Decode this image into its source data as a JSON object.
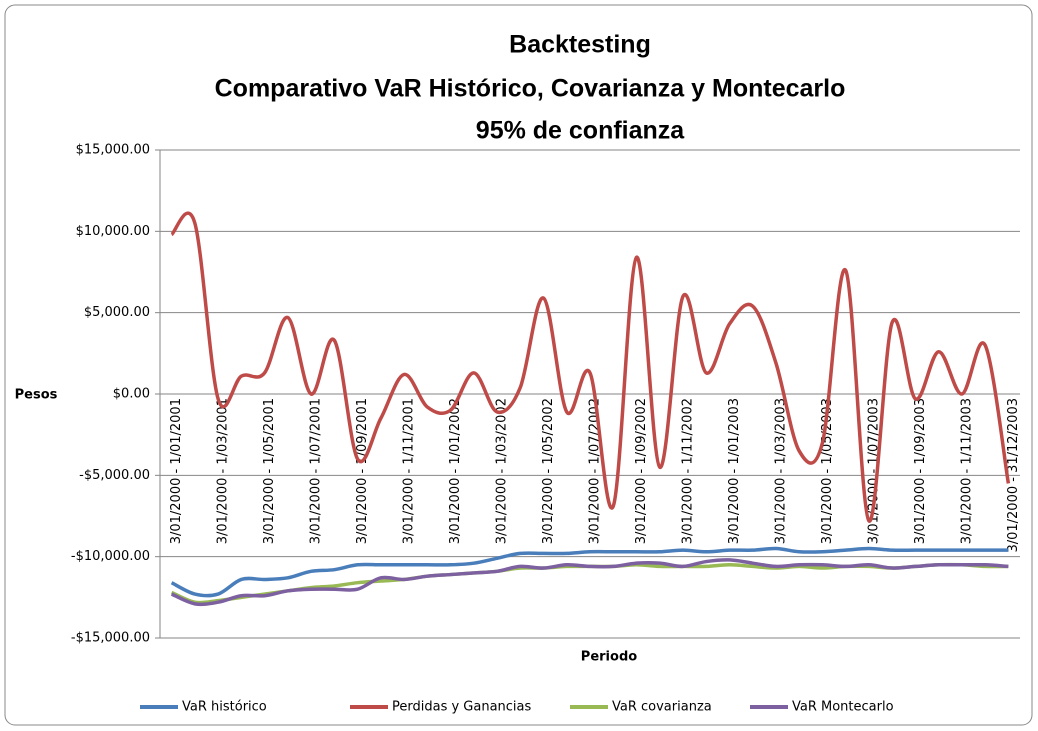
{
  "chart_data": {
    "type": "line",
    "title": [
      "Backtesting",
      "Comparativo VaR Histórico, Covarianza y Montecarlo",
      "95% de confianza"
    ],
    "y_label": "Pesos",
    "x_label": "Periodo",
    "categories": [
      "3/01/2000 - 1/01/2001",
      null,
      "3/01/2000 - 1/03/2001",
      null,
      "3/01/2000 - 1/05/2001",
      null,
      "3/01/2000 - 1/07/2001",
      null,
      "3/01/2000 - 1/09/2001",
      null,
      "3/01/2000 - 1/11/2001",
      null,
      "3/01/2000 - 1/01/2002",
      null,
      "3/01/2000 - 1/03/2002",
      null,
      "3/01/2000 - 1/05/2002",
      null,
      "3/01/2000 - 1/07/2002",
      null,
      "3/01/2000 - 1/09/2002",
      null,
      "3/01/2000 - 1/11/2002",
      null,
      "3/01/2000 - 1/01/2003",
      null,
      "3/01/2000 - 1/03/2003",
      null,
      "3/01/2000 - 1/05/2003",
      null,
      "3/01/2000 - 1/07/2003",
      null,
      "3/01/2000 - 1/09/2003",
      null,
      "3/01/2000 - 1/11/2003",
      null,
      "3/01/2000 - 31/12/2003"
    ],
    "series": [
      {
        "name": "VaR histórico",
        "color": "#4a7ebb",
        "values": [
          -11600,
          -12300,
          -12300,
          -11400,
          -11400,
          -11300,
          -10900,
          -10800,
          -10500,
          -10500,
          -10500,
          -10500,
          -10500,
          -10400,
          -10100,
          -9800,
          -9800,
          -9800,
          -9700,
          -9700,
          -9700,
          -9700,
          -9600,
          -9700,
          -9600,
          -9600,
          -9500,
          -9700,
          -9700,
          -9600,
          -9500,
          -9600,
          -9600,
          -9600,
          -9600,
          -9600,
          -9600
        ]
      },
      {
        "name": "Perdidas y Ganancias",
        "color": "#be4b48",
        "values": [
          9800,
          10500,
          -300,
          1100,
          1300,
          4700,
          0,
          3300,
          -4000,
          -1500,
          1200,
          -800,
          -1000,
          1300,
          -1100,
          400,
          5900,
          -1100,
          1300,
          -6900,
          8400,
          -4500,
          6000,
          1300,
          4300,
          5400,
          1900,
          -3500,
          -3000,
          7600,
          -7800,
          4400,
          -300,
          2600,
          0,
          3000,
          -5500
        ]
      },
      {
        "name": "VaR covarianza",
        "color": "#98b954",
        "values": [
          -12200,
          -12800,
          -12700,
          -12500,
          -12300,
          -12100,
          -11900,
          -11800,
          -11600,
          -11500,
          -11400,
          -11200,
          -11100,
          -11000,
          -10900,
          -10700,
          -10700,
          -10600,
          -10600,
          -10600,
          -10500,
          -10600,
          -10600,
          -10600,
          -10500,
          -10600,
          -10700,
          -10600,
          -10700,
          -10600,
          -10600,
          -10700,
          -10600,
          -10500,
          -10500,
          -10600,
          -10600
        ]
      },
      {
        "name": "VaR Montecarlo",
        "color": "#7d60a0",
        "values": [
          -12300,
          -12900,
          -12800,
          -12400,
          -12400,
          -12100,
          -12000,
          -12000,
          -12000,
          -11300,
          -11400,
          -11200,
          -11100,
          -11000,
          -10900,
          -10600,
          -10700,
          -10500,
          -10600,
          -10600,
          -10400,
          -10400,
          -10600,
          -10300,
          -10200,
          -10400,
          -10600,
          -10500,
          -10500,
          -10600,
          -10500,
          -10700,
          -10600,
          -10500,
          -10500,
          -10500,
          -10600
        ]
      }
    ],
    "ylim": [
      -15000,
      15000
    ],
    "yticks": [
      {
        "value": -15000,
        "label": "-$15,000.00"
      },
      {
        "value": -10000,
        "label": "-$10,000.00"
      },
      {
        "value": -5000,
        "label": "-$5,000.00"
      },
      {
        "value": 0,
        "label": "$0.00"
      },
      {
        "value": 5000,
        "label": "$5,000.00"
      },
      {
        "value": 10000,
        "label": "$10,000.00"
      },
      {
        "value": 15000,
        "label": "$15,000.00"
      }
    ],
    "grid": true,
    "legend": "bottom"
  }
}
